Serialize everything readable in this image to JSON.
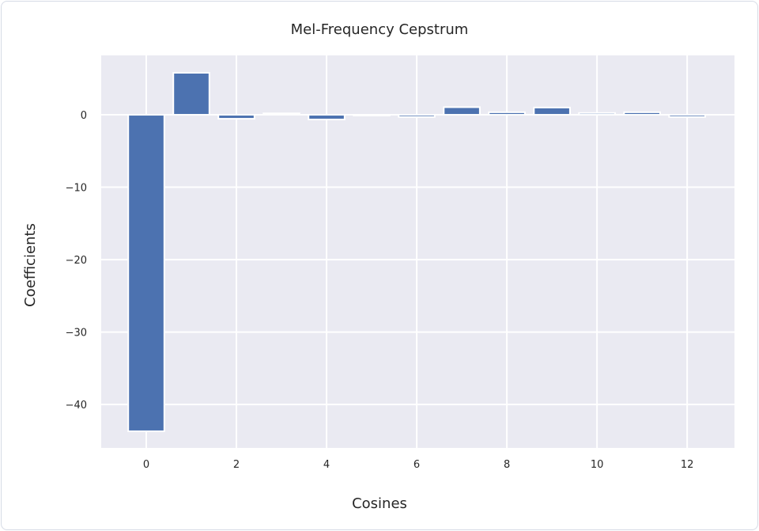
{
  "chart_data": {
    "type": "bar",
    "title": "Mel-Frequency Cepstrum",
    "xlabel": "Cosines",
    "ylabel": "Coefficients",
    "categories": [
      0,
      1,
      2,
      3,
      4,
      5,
      6,
      7,
      8,
      9,
      10,
      11,
      12
    ],
    "values": [
      -43.7,
      5.8,
      -0.55,
      0.2,
      -0.65,
      -0.1,
      -0.3,
      1.05,
      0.35,
      1.0,
      0.25,
      0.35,
      -0.3
    ],
    "xlim": [
      -1.0,
      13.05
    ],
    "ylim": [
      -46.0,
      8.2
    ],
    "xticks": [
      0,
      2,
      4,
      6,
      8,
      10,
      12
    ],
    "xtick_labels": [
      "0",
      "2",
      "4",
      "6",
      "8",
      "10",
      "12"
    ],
    "yticks": [
      0,
      -10,
      -20,
      -30,
      -40
    ],
    "ytick_labels": [
      "0",
      "−10",
      "−20",
      "−30",
      "−40"
    ],
    "grid": true,
    "colors": {
      "bar": "#4C72B0",
      "background": "#EAEAF2",
      "grid": "#FFFFFF"
    }
  }
}
